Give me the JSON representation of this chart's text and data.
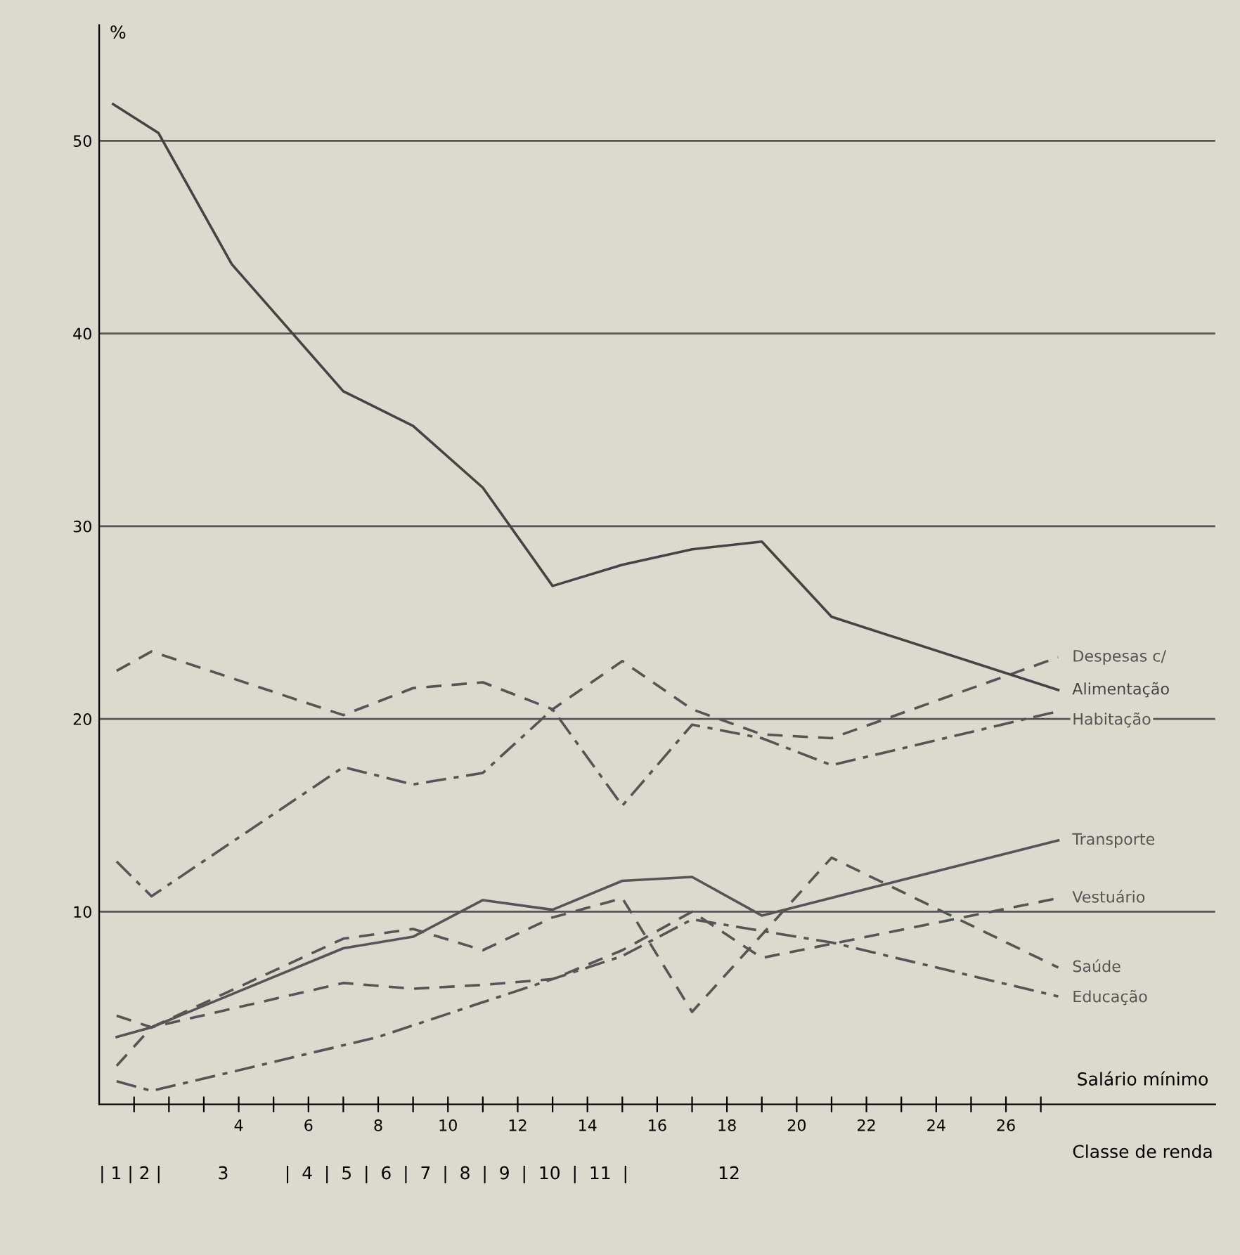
{
  "chart_data": {
    "type": "line",
    "ylabel": "%",
    "xlabel": "Salário mínimo",
    "x2label": "Classe de renda",
    "xlim": [
      0,
      32
    ],
    "ylim": [
      0,
      56
    ],
    "xticks": [
      {
        "value": 1,
        "label": null
      },
      {
        "value": 2,
        "label": null
      },
      {
        "value": 3,
        "label": null
      },
      {
        "value": 4,
        "label": "4"
      },
      {
        "value": 5,
        "label": null
      },
      {
        "value": 6,
        "label": "6"
      },
      {
        "value": 7,
        "label": null
      },
      {
        "value": 8,
        "label": "8"
      },
      {
        "value": 9,
        "label": null
      },
      {
        "value": 10,
        "label": "10"
      },
      {
        "value": 11,
        "label": null
      },
      {
        "value": 12,
        "label": "12"
      },
      {
        "value": 13,
        "label": null
      },
      {
        "value": 14,
        "label": "14"
      },
      {
        "value": 15,
        "label": null
      },
      {
        "value": 16,
        "label": "16"
      },
      {
        "value": 17,
        "label": null
      },
      {
        "value": 18,
        "label": "18"
      },
      {
        "value": 19,
        "label": null
      },
      {
        "value": 20,
        "label": "20"
      },
      {
        "value": 21,
        "label": null
      },
      {
        "value": 22,
        "label": "22"
      },
      {
        "value": 23,
        "label": null
      },
      {
        "value": 24,
        "label": "24"
      },
      {
        "value": 25,
        "label": null
      },
      {
        "value": 26,
        "label": "26"
      },
      {
        "value": 27,
        "label": null
      }
    ],
    "annotations": [
      "| 1 | 2 |          3          |  4  |  5  |  6  |  7  |  8  |  9  |  10  |  11  |                12"
    ],
    "yticks": [
      10,
      20,
      30,
      40,
      50
    ],
    "grid": "y",
    "series": [
      {
        "name": "Despesas c/",
        "color": "#555555",
        "line_style": "dashed",
        "x": [
          0.5,
          1.5,
          7,
          9,
          11,
          13,
          15,
          17,
          19,
          21,
          27.5
        ],
        "values": [
          22.5,
          23.5,
          20.2,
          21.6,
          21.9,
          20.5,
          23.0,
          20.5,
          19.2,
          19.0,
          23.2
        ]
      },
      {
        "name": "Alimentação",
        "color": "#444444",
        "line_style": "solid",
        "x": [
          0.4,
          1.7,
          3.8,
          7,
          9,
          11,
          13,
          15,
          17,
          19,
          21,
          27.5
        ],
        "values": [
          51.9,
          50.4,
          43.6,
          37.0,
          35.2,
          32.0,
          26.9,
          28.0,
          28.8,
          29.2,
          25.3,
          21.5
        ]
      },
      {
        "name": "Habitação",
        "color": "#555555",
        "line_style": "dashdot",
        "x": [
          0.5,
          1.5,
          7,
          9,
          11,
          13,
          15,
          17,
          19,
          21,
          27.5
        ],
        "values": [
          12.6,
          10.8,
          17.5,
          16.6,
          17.2,
          20.5,
          15.5,
          19.7,
          19.0,
          17.6,
          20.4
        ]
      },
      {
        "name": "Transporte",
        "color": "#555555",
        "line_style": "solid",
        "x": [
          0.5,
          1.5,
          7,
          9,
          11,
          13,
          15,
          17,
          19,
          27.5
        ],
        "values": [
          3.5,
          4.0,
          8.1,
          8.7,
          10.6,
          10.1,
          11.6,
          11.8,
          9.8,
          13.7
        ]
      },
      {
        "name": "Vestuário",
        "color": "#555555",
        "line_style": "dashed",
        "x": [
          0.5,
          1.5,
          7,
          9,
          11,
          13,
          15,
          17,
          19,
          27.5
        ],
        "values": [
          4.6,
          4.0,
          6.3,
          6.0,
          6.2,
          6.5,
          8.0,
          10.0,
          7.6,
          10.7
        ]
      },
      {
        "name": "Saúde",
        "color": "#555555",
        "line_style": "dashed",
        "x": [
          0.5,
          1.5,
          7,
          9,
          11,
          13,
          15,
          17,
          21,
          27.5
        ],
        "values": [
          2.0,
          4.0,
          8.6,
          9.1,
          8.0,
          9.7,
          10.7,
          4.8,
          12.8,
          7.1
        ]
      },
      {
        "name": "Educação",
        "color": "#555555",
        "line_style": "dashdot",
        "x": [
          0.5,
          1.5,
          5,
          8,
          11,
          13,
          15,
          17,
          21,
          27.5
        ],
        "values": [
          1.2,
          0.7,
          2.2,
          3.5,
          5.3,
          6.5,
          7.7,
          9.6,
          8.4,
          5.6
        ]
      }
    ]
  }
}
